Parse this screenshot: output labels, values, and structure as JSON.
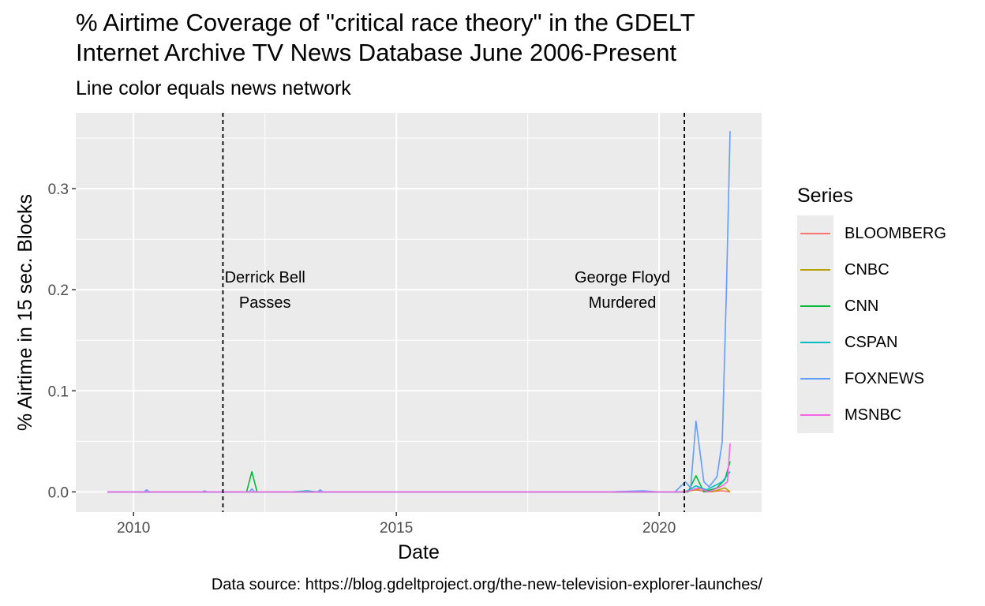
{
  "chart_data": {
    "type": "line",
    "title": "% Airtime Coverage of \"critical race theory\" in the GDELT Internet Archive TV News Database June 2006-Present",
    "title_lines": [
      "% Airtime Coverage of \"critical race theory\" in the GDELT",
      "Internet Archive TV News Database June 2006-Present"
    ],
    "subtitle": "Line color equals news network",
    "caption": "Data source: https://blog.gdeltproject.org/the-new-television-explorer-launches/",
    "xlabel": "Date",
    "ylabel": "% Airtime in 15 sec. Blocks",
    "xlim": [
      2008.9,
      2021.95
    ],
    "ylim": [
      -0.02,
      0.375
    ],
    "x_ticks": [
      2010,
      2015,
      2020
    ],
    "y_ticks": [
      0.0,
      0.1,
      0.2,
      0.3
    ],
    "y_tick_labels": [
      "0.0",
      "0.1",
      "0.2",
      "0.3"
    ],
    "grid": true,
    "legend": {
      "title": "Series",
      "placement": "right"
    },
    "annotations": [
      {
        "x": 2011.7,
        "lines": [
          "Derrick Bell",
          "Passes"
        ],
        "label_x": 2012.5
      },
      {
        "x": 2020.48,
        "lines": [
          "George Floyd",
          "Murdered"
        ],
        "label_x": 2019.3
      }
    ],
    "series": [
      {
        "name": "BLOOMBERG",
        "color": "#F8766D",
        "points": [
          [
            2009.5,
            0
          ],
          [
            2020.4,
            0
          ],
          [
            2020.7,
            0.002
          ],
          [
            2020.9,
            0
          ],
          [
            2021.2,
            0.001
          ],
          [
            2021.35,
            0
          ]
        ]
      },
      {
        "name": "CNBC",
        "color": "#B79F00",
        "points": [
          [
            2009.5,
            0
          ],
          [
            2020.5,
            0
          ],
          [
            2020.8,
            0.003
          ],
          [
            2021.0,
            0
          ],
          [
            2021.25,
            0.004
          ],
          [
            2021.35,
            0
          ]
        ]
      },
      {
        "name": "CNN",
        "color": "#00BA38",
        "points": [
          [
            2009.5,
            0
          ],
          [
            2012.15,
            0
          ],
          [
            2012.25,
            0.02
          ],
          [
            2012.35,
            0
          ],
          [
            2020.55,
            0
          ],
          [
            2020.7,
            0.016
          ],
          [
            2020.85,
            0
          ],
          [
            2021.1,
            0.004
          ],
          [
            2021.25,
            0.012
          ],
          [
            2021.35,
            0.03
          ]
        ]
      },
      {
        "name": "CSPAN",
        "color": "#00BFC4",
        "points": [
          [
            2009.5,
            0
          ],
          [
            2013.0,
            0
          ],
          [
            2013.3,
            0.001
          ],
          [
            2013.5,
            0
          ],
          [
            2020.5,
            0
          ],
          [
            2020.7,
            0.006
          ],
          [
            2020.9,
            0.002
          ],
          [
            2021.2,
            0.01
          ],
          [
            2021.35,
            0.02
          ]
        ]
      },
      {
        "name": "FOXNEWS",
        "color": "#619CFF",
        "points": [
          [
            2009.5,
            0
          ],
          [
            2010.2,
            0
          ],
          [
            2010.25,
            0.002
          ],
          [
            2010.3,
            0
          ],
          [
            2011.3,
            0
          ],
          [
            2011.35,
            0.001
          ],
          [
            2011.4,
            0
          ],
          [
            2012.2,
            0
          ],
          [
            2012.25,
            0.003
          ],
          [
            2012.3,
            0
          ],
          [
            2013.5,
            0
          ],
          [
            2013.55,
            0.002
          ],
          [
            2013.6,
            0
          ],
          [
            2019.0,
            0
          ],
          [
            2019.7,
            0.001
          ],
          [
            2020.0,
            0
          ],
          [
            2020.3,
            0
          ],
          [
            2020.5,
            0.01
          ],
          [
            2020.6,
            0.004
          ],
          [
            2020.7,
            0.07
          ],
          [
            2020.85,
            0.01
          ],
          [
            2020.95,
            0.005
          ],
          [
            2021.1,
            0.015
          ],
          [
            2021.2,
            0.05
          ],
          [
            2021.28,
            0.2
          ],
          [
            2021.35,
            0.357
          ]
        ]
      },
      {
        "name": "MSNBC",
        "color": "#F564E3",
        "points": [
          [
            2009.5,
            0
          ],
          [
            2020.5,
            0
          ],
          [
            2020.75,
            0.004
          ],
          [
            2020.95,
            0
          ],
          [
            2021.2,
            0.006
          ],
          [
            2021.3,
            0.01
          ],
          [
            2021.35,
            0.048
          ]
        ]
      }
    ]
  }
}
